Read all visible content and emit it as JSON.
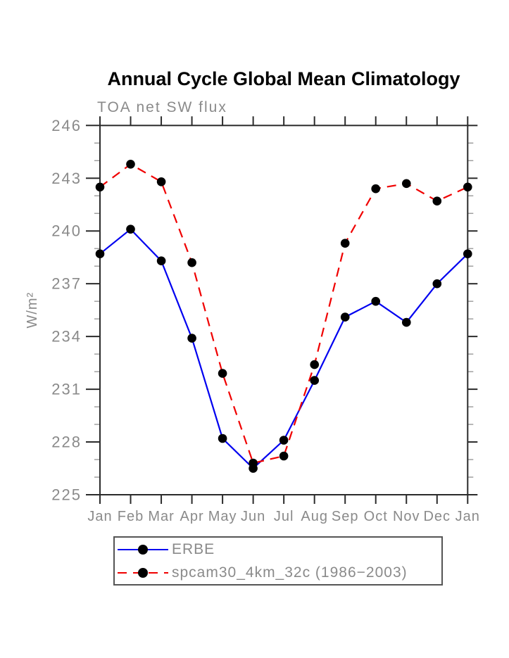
{
  "page": {
    "background_color": "#ffffff"
  },
  "chart_data": {
    "type": "line",
    "title": "Annual Cycle Global Mean Climatology",
    "subtitle": "TOA net SW flux",
    "xlabel": "",
    "ylabel": "W/m²",
    "categories": [
      "Jan",
      "Feb",
      "Mar",
      "Apr",
      "May",
      "Jun",
      "Jul",
      "Aug",
      "Sep",
      "Oct",
      "Nov",
      "Dec",
      "Jan"
    ],
    "ylim": [
      225,
      246
    ],
    "ytick_major_interval": 3,
    "ytick_minor_interval": 1,
    "ytick_labels": [
      "225",
      "228",
      "231",
      "234",
      "237",
      "240",
      "243",
      "246"
    ],
    "grid": false,
    "legend_position": "bottom-left-box",
    "series": [
      {
        "name": "ERBE",
        "line_style": "solid",
        "color": "#0000f0",
        "marker": "circle",
        "marker_color": "#000000",
        "values": [
          238.7,
          240.1,
          238.3,
          233.9,
          228.2,
          226.5,
          228.1,
          231.5,
          235.1,
          236.0,
          234.8,
          237.0,
          238.7
        ]
      },
      {
        "name": "spcam30_4km_32c (1986−2003)",
        "line_style": "dashed",
        "color": "#f00000",
        "marker": "circle",
        "marker_color": "#000000",
        "values": [
          242.5,
          243.8,
          242.8,
          238.2,
          231.9,
          226.8,
          227.2,
          232.4,
          239.3,
          242.4,
          242.7,
          241.7,
          242.5
        ]
      }
    ],
    "colors": {
      "axis": "#2b2b2b",
      "minor_tick": "#999999",
      "tick_label": "#8a8a8a",
      "title": "#000000"
    }
  }
}
